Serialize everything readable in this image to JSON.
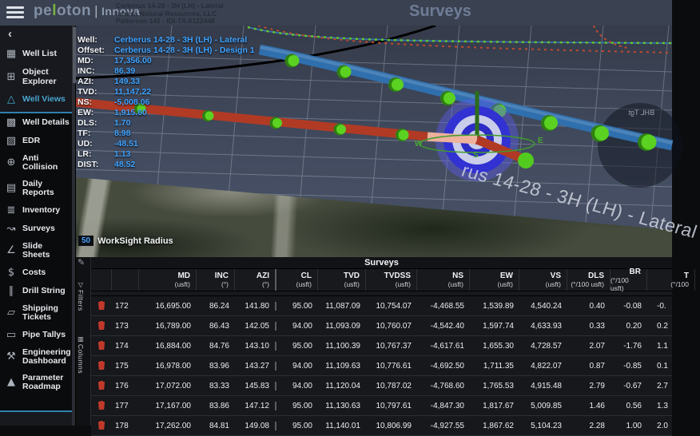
{
  "topbar": {
    "logo": {
      "pre": "pe",
      "accent": "l",
      "post": "oton",
      "divider": "|",
      "product": "Innova"
    },
    "well_header": {
      "line1": "Cerberus 14-28 - 3H (LH) - Lateral",
      "line2": "Innova Natural Resources, LLC",
      "line3": "Patterson 142 - IDI-TX-0122448"
    },
    "page_title": "Surveys"
  },
  "sidebar": {
    "back_glyph": "‹",
    "items_top": [
      {
        "label": "Well List",
        "icon": "well-list-icon",
        "glyph": "▦",
        "active": false
      },
      {
        "label": "Object Explorer",
        "icon": "object-explorer-icon",
        "glyph": "⊞",
        "active": false
      },
      {
        "label": "Well Views",
        "icon": "well-views-icon",
        "glyph": "△",
        "active": true
      }
    ],
    "items_group": [
      {
        "label": "Well Details",
        "icon": "well-details-icon",
        "glyph": "▩"
      },
      {
        "label": "EDR",
        "icon": "edr-icon",
        "glyph": "▨"
      },
      {
        "label": "Anti Collision",
        "icon": "anti-collision-icon",
        "glyph": "⊕"
      },
      {
        "label": "Daily Reports",
        "icon": "daily-reports-icon",
        "glyph": "▤"
      },
      {
        "label": "Inventory",
        "icon": "inventory-icon",
        "glyph": "≣"
      },
      {
        "label": "Surveys",
        "icon": "surveys-icon",
        "glyph": "↝"
      },
      {
        "label": "Slide Sheets",
        "icon": "slide-sheets-icon",
        "glyph": "∠"
      },
      {
        "label": "Costs",
        "icon": "costs-icon",
        "glyph": "$"
      },
      {
        "label": "Drill String",
        "icon": "drill-string-icon",
        "glyph": "∥"
      },
      {
        "label": "Shipping Tickets",
        "icon": "shipping-tickets-icon",
        "glyph": "▱"
      },
      {
        "label": "Pipe Tallys",
        "icon": "pipe-tallys-icon",
        "glyph": "▭"
      },
      {
        "label": "Engineering Dashboard",
        "icon": "engineering-dashboard-icon",
        "glyph": "⚒"
      },
      {
        "label": "Parameter Roadmap",
        "icon": "parameter-roadmap-icon",
        "glyph": "▲"
      }
    ]
  },
  "viewport": {
    "info": [
      {
        "label": "Well:",
        "value": "Cerberus 14-28 - 3H (LH) - Lateral"
      },
      {
        "label": "Offset:",
        "value": "Cerberus 14-28 - 3H (LH) - Design 1"
      },
      {
        "label": "MD:",
        "value": "17,356.00"
      },
      {
        "label": "INC:",
        "value": "86.39"
      },
      {
        "label": "AZI:",
        "value": "149.33"
      },
      {
        "label": "TVD:",
        "value": "11,147.22"
      },
      {
        "label": "NS:",
        "value": "-5,008.06"
      },
      {
        "label": "EW:",
        "value": "1,915.60"
      },
      {
        "label": "DLS:",
        "value": "1.70"
      },
      {
        "label": "TF:",
        "value": "8.98"
      },
      {
        "label": "UD:",
        "value": "-48.51"
      },
      {
        "label": "LR:",
        "value": "1.13"
      },
      {
        "label": "DIST:",
        "value": "48.52"
      }
    ],
    "worksight": {
      "radius": "50",
      "label": "WorkSight Radius"
    },
    "ground_label": "rus 14-28 - 3H (LH) - Lateral",
    "bhl_label": "BHL Tgt",
    "compass": {
      "west": "W",
      "east": "E",
      "south": "S"
    },
    "colors": {
      "tube_blue": "#2f6fad",
      "tube_red": "#b13a24",
      "tube_pink": "#edb19c",
      "sphere_green": "#5bd122",
      "sphere_green_dark": "#2e8011",
      "target_blue": "#3231d2",
      "target_white": "#c9cde9",
      "target_center": "#7c3f93",
      "compass_green": "#4aa832",
      "value_blue": "#3ea2ff"
    }
  },
  "table": {
    "title": "Surveys",
    "edit_glyph": "✎",
    "side_tabs": [
      {
        "label": "Filters",
        "glyph": "▽",
        "icon": "filter-icon"
      },
      {
        "label": "Columns",
        "glyph": "▥",
        "icon": "columns-icon"
      }
    ],
    "columns": [
      {
        "name": "MD",
        "unit": "(usft)"
      },
      {
        "name": "INC",
        "unit": "(°)"
      },
      {
        "name": "AZI",
        "unit": "(°)"
      },
      {
        "name": "CL",
        "unit": "(usft)"
      },
      {
        "name": "TVD",
        "unit": "(usft)"
      },
      {
        "name": "TVDSS",
        "unit": "(usft)"
      },
      {
        "name": "NS",
        "unit": "(usft)"
      },
      {
        "name": "EW",
        "unit": "(usft)"
      },
      {
        "name": "VS",
        "unit": "(usft)"
      },
      {
        "name": "DLS",
        "unit": "(°/100 usft)"
      },
      {
        "name": "BR",
        "unit": "(°/100 usft)"
      },
      {
        "name": "T",
        "unit": "(°/100"
      }
    ],
    "rows": [
      {
        "num": "172",
        "cells": [
          "16,695.00",
          "86.24",
          "141.80",
          "95.00",
          "11,087.09",
          "10,754.07",
          "-4,468.55",
          "1,539.89",
          "4,540.24",
          "0.40",
          "-0.08",
          "-0."
        ]
      },
      {
        "num": "173",
        "cells": [
          "16,789.00",
          "86.43",
          "142.05",
          "94.00",
          "11,093.09",
          "10,760.07",
          "-4,542.40",
          "1,597.74",
          "4,633.93",
          "0.33",
          "0.20",
          "0.2"
        ]
      },
      {
        "num": "174",
        "cells": [
          "16,884.00",
          "84.76",
          "143.10",
          "95.00",
          "11,100.39",
          "10,767.37",
          "-4,617.61",
          "1,655.30",
          "4,728.57",
          "2.07",
          "-1.76",
          "1.1"
        ]
      },
      {
        "num": "175",
        "cells": [
          "16,978.00",
          "83.96",
          "143.27",
          "94.00",
          "11,109.63",
          "10,776.61",
          "-4,692.50",
          "1,711.35",
          "4,822.07",
          "0.87",
          "-0.85",
          "0.1"
        ]
      },
      {
        "num": "176",
        "cells": [
          "17,072.00",
          "83.33",
          "145.83",
          "94.00",
          "11,120.04",
          "10,787.02",
          "-4,768.60",
          "1,765.53",
          "4,915.48",
          "2.79",
          "-0.67",
          "2.7"
        ]
      },
      {
        "num": "177",
        "cells": [
          "17,167.00",
          "83.86",
          "147.12",
          "95.00",
          "11,130.63",
          "10,797.61",
          "-4,847.30",
          "1,817.67",
          "5,009.85",
          "1.46",
          "0.56",
          "1.3"
        ]
      },
      {
        "num": "178",
        "cells": [
          "17,262.00",
          "84.81",
          "149.08",
          "95.00",
          "11,140.01",
          "10,806.99",
          "-4,927.55",
          "1,867.62",
          "5,104.23",
          "2.28",
          "1.00",
          "2.0"
        ]
      }
    ]
  }
}
